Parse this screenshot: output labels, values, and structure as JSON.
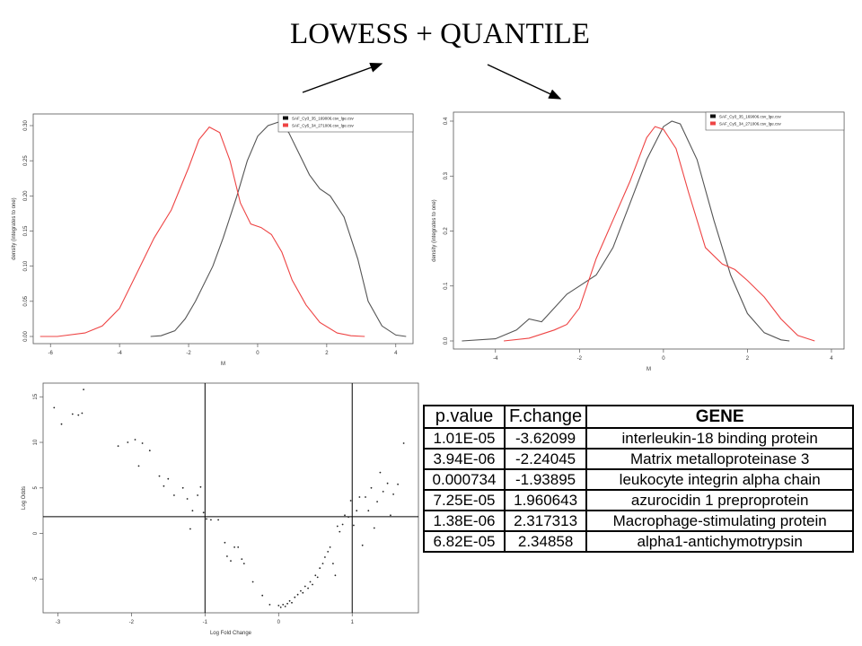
{
  "slide": {
    "title": "LOWESS + QUANTILE"
  },
  "colors": {
    "series_black": "#555555",
    "series_red": "#ee4444",
    "axis": "#555555"
  },
  "chart_data": [
    {
      "name": "density-before-normalization",
      "type": "line",
      "xlabel": "M",
      "ylabel": "density (integrates to one)",
      "xlim": [
        -6.5,
        4.5
      ],
      "ylim": [
        0,
        0.3
      ],
      "xticks": [
        "-6",
        "-4",
        "-2",
        "0",
        "2",
        "4"
      ],
      "yticks": [
        "0.00",
        "0.05",
        "0.10",
        "0.15",
        "0.20",
        "0.25",
        "0.30"
      ],
      "legend_position": "top-right",
      "series": [
        {
          "name": "SAF_Cy3_35_169006.csv_lge.csv",
          "color": "#555555",
          "x": [
            -3.1,
            -2.8,
            -2.4,
            -2.1,
            -1.8,
            -1.3,
            -1.0,
            -0.6,
            -0.3,
            0.0,
            0.3,
            0.6,
            0.9,
            1.2,
            1.5,
            1.8,
            2.1,
            2.5,
            2.9,
            3.2,
            3.6,
            4.0,
            4.3
          ],
          "y": [
            0.0,
            0.001,
            0.008,
            0.025,
            0.05,
            0.1,
            0.14,
            0.2,
            0.25,
            0.285,
            0.3,
            0.305,
            0.29,
            0.26,
            0.23,
            0.21,
            0.2,
            0.17,
            0.11,
            0.05,
            0.015,
            0.002,
            0.0
          ]
        },
        {
          "name": "SAF_Cy5_34_271006.csv_lge.csv",
          "color": "#ee4444",
          "x": [
            -6.3,
            -5.8,
            -5.0,
            -4.5,
            -4.0,
            -3.5,
            -3.0,
            -2.5,
            -2.0,
            -1.7,
            -1.4,
            -1.1,
            -0.8,
            -0.5,
            -0.2,
            0.1,
            0.4,
            0.7,
            1.0,
            1.4,
            1.8,
            2.3,
            2.7,
            3.1
          ],
          "y": [
            0.0,
            0.0,
            0.005,
            0.015,
            0.04,
            0.09,
            0.14,
            0.18,
            0.24,
            0.28,
            0.298,
            0.29,
            0.25,
            0.19,
            0.16,
            0.155,
            0.145,
            0.12,
            0.08,
            0.045,
            0.02,
            0.005,
            0.001,
            0.0
          ]
        }
      ]
    },
    {
      "name": "density-after-normalization",
      "type": "line",
      "xlabel": "M",
      "ylabel": "density (integrates to one)",
      "xlim": [
        -5,
        4.3
      ],
      "ylim": [
        0,
        0.4
      ],
      "xticks": [
        "-4",
        "-2",
        "0",
        "2",
        "4"
      ],
      "yticks": [
        "0.0",
        "0.1",
        "0.2",
        "0.3",
        "0.4"
      ],
      "legend_position": "top-right",
      "series": [
        {
          "name": "SAF_Cy3_35_169006.csv_lge.csv",
          "color": "#555555",
          "x": [
            -4.8,
            -4.0,
            -3.5,
            -3.2,
            -2.9,
            -2.6,
            -2.3,
            -2.0,
            -1.6,
            -1.2,
            -0.8,
            -0.4,
            0.0,
            0.2,
            0.4,
            0.8,
            1.2,
            1.6,
            2.0,
            2.4,
            2.8,
            3.0
          ],
          "y": [
            0.0,
            0.004,
            0.02,
            0.04,
            0.035,
            0.06,
            0.085,
            0.1,
            0.12,
            0.17,
            0.25,
            0.33,
            0.39,
            0.4,
            0.395,
            0.33,
            0.22,
            0.12,
            0.05,
            0.015,
            0.002,
            0.0
          ]
        },
        {
          "name": "SAF_Cy5_34_271006.csv_lge.csv",
          "color": "#ee4444",
          "x": [
            -3.8,
            -3.2,
            -2.6,
            -2.3,
            -2.0,
            -1.6,
            -1.2,
            -0.8,
            -0.4,
            -0.2,
            0.0,
            0.3,
            0.6,
            1.0,
            1.4,
            1.7,
            2.0,
            2.4,
            2.8,
            3.2,
            3.6
          ],
          "y": [
            0.0,
            0.005,
            0.02,
            0.03,
            0.06,
            0.15,
            0.22,
            0.29,
            0.37,
            0.39,
            0.385,
            0.35,
            0.27,
            0.17,
            0.14,
            0.13,
            0.11,
            0.08,
            0.04,
            0.01,
            0.0
          ]
        }
      ]
    },
    {
      "name": "volcano-plot",
      "type": "scatter",
      "xlabel": "Log Fold Change",
      "ylabel": "Log Odds",
      "xlim": [
        -3.2,
        1.9
      ],
      "ylim": [
        -8.7,
        16.5
      ],
      "xticks": [
        "-3",
        "-2",
        "-1",
        "0",
        "1"
      ],
      "yticks": [
        "-5",
        "0",
        "5",
        "10",
        "15"
      ],
      "reference_lines": {
        "vertical": [
          -1,
          1
        ],
        "horizontal": [
          1.85
        ]
      },
      "points": [
        [
          -3.05,
          13.8
        ],
        [
          -2.95,
          12.0
        ],
        [
          -2.8,
          13.1
        ],
        [
          -2.72,
          13.0
        ],
        [
          -2.67,
          13.2
        ],
        [
          -2.65,
          15.8
        ],
        [
          -2.18,
          9.6
        ],
        [
          -2.05,
          10.0
        ],
        [
          -1.95,
          10.3
        ],
        [
          -1.9,
          7.4
        ],
        [
          -1.85,
          9.9
        ],
        [
          -1.75,
          9.1
        ],
        [
          -1.62,
          6.3
        ],
        [
          -1.56,
          5.2
        ],
        [
          -1.5,
          6.0
        ],
        [
          -1.42,
          4.2
        ],
        [
          -1.3,
          5.0
        ],
        [
          -1.24,
          3.8
        ],
        [
          -1.2,
          0.5
        ],
        [
          -1.17,
          2.5
        ],
        [
          -1.1,
          4.2
        ],
        [
          -1.06,
          5.1
        ],
        [
          -1.02,
          2.3
        ],
        [
          -0.98,
          1.6
        ],
        [
          -0.92,
          1.5
        ],
        [
          -0.82,
          1.5
        ],
        [
          -0.73,
          -1.0
        ],
        [
          -0.7,
          -2.5
        ],
        [
          -0.65,
          -3.0
        ],
        [
          -0.6,
          -1.5
        ],
        [
          -0.55,
          -1.5
        ],
        [
          -0.5,
          -2.8
        ],
        [
          -0.47,
          -3.3
        ],
        [
          -0.35,
          -5.3
        ],
        [
          -0.22,
          -6.8
        ],
        [
          -0.12,
          -7.8
        ],
        [
          0.0,
          -7.9
        ],
        [
          0.03,
          -8.1
        ],
        [
          0.06,
          -7.8
        ],
        [
          0.09,
          -8.0
        ],
        [
          0.12,
          -7.7
        ],
        [
          0.15,
          -7.4
        ],
        [
          0.18,
          -7.6
        ],
        [
          0.22,
          -7.0
        ],
        [
          0.26,
          -6.7
        ],
        [
          0.3,
          -6.3
        ],
        [
          0.33,
          -6.5
        ],
        [
          0.36,
          -5.8
        ],
        [
          0.4,
          -6.0
        ],
        [
          0.43,
          -5.3
        ],
        [
          0.46,
          -5.6
        ],
        [
          0.5,
          -4.6
        ],
        [
          0.53,
          -4.8
        ],
        [
          0.56,
          -3.8
        ],
        [
          0.6,
          -3.3
        ],
        [
          0.63,
          -2.6
        ],
        [
          0.67,
          -2.0
        ],
        [
          0.7,
          -1.5
        ],
        [
          0.74,
          -3.3
        ],
        [
          0.77,
          -4.6
        ],
        [
          0.8,
          0.8
        ],
        [
          0.83,
          0.2
        ],
        [
          0.87,
          1.0
        ],
        [
          0.9,
          2.0
        ],
        [
          0.95,
          1.8
        ],
        [
          0.98,
          3.6
        ],
        [
          1.02,
          0.9
        ],
        [
          1.06,
          2.5
        ],
        [
          1.1,
          4.0
        ],
        [
          1.14,
          -1.3
        ],
        [
          1.18,
          4.0
        ],
        [
          1.22,
          2.5
        ],
        [
          1.26,
          5.0
        ],
        [
          1.3,
          0.6
        ],
        [
          1.34,
          3.5
        ],
        [
          1.38,
          6.7
        ],
        [
          1.42,
          4.6
        ],
        [
          1.48,
          5.5
        ],
        [
          1.52,
          2.0
        ],
        [
          1.56,
          4.3
        ],
        [
          1.62,
          5.4
        ],
        [
          1.7,
          9.9
        ]
      ]
    }
  ],
  "table": {
    "headers": [
      "p.value",
      "F.change",
      "GENE"
    ],
    "rows": [
      [
        "1.01E-05",
        "-3.62099",
        "interleukin-18 binding protein"
      ],
      [
        "3.94E-06",
        "-2.24045",
        "Matrix metalloproteinase 3"
      ],
      [
        "0.000734",
        "-1.93895",
        "leukocyte integrin alpha chain"
      ],
      [
        "7.25E-05",
        "1.960643",
        "azurocidin 1 preproprotein"
      ],
      [
        "1.38E-06",
        "2.317313",
        "Macrophage-stimulating protein"
      ],
      [
        "6.82E-05",
        "2.34858",
        "alpha1-antichymotrypsin"
      ]
    ]
  }
}
